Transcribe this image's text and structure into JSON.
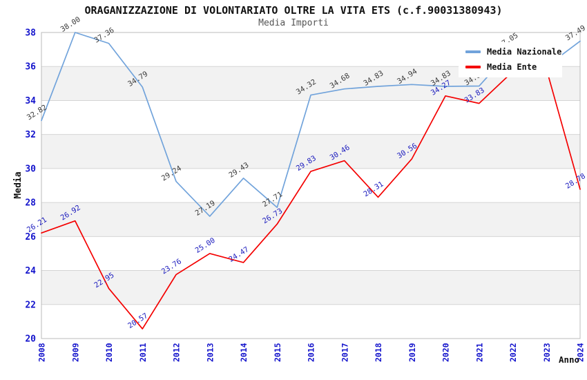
{
  "chart_data": {
    "type": "line",
    "title": "ORAGANIZZAZIONE DI VOLONTARIATO OLTRE LA VITA ETS (c.f.90031380943)",
    "subtitle": "Media Importi",
    "xlabel": "Anno",
    "ylabel": "Media",
    "categories": [
      "2008",
      "2009",
      "2010",
      "2011",
      "2012",
      "2013",
      "2014",
      "2015",
      "2016",
      "2017",
      "2018",
      "2019",
      "2020",
      "2021",
      "2022",
      "2023",
      "2024"
    ],
    "series": [
      {
        "name": "Media Nazionale",
        "color": "#71a3db",
        "label_color": "#3c3c3c",
        "values": [
          32.82,
          38.0,
          37.36,
          34.79,
          29.24,
          27.19,
          29.43,
          27.71,
          34.32,
          34.68,
          34.83,
          34.94,
          34.83,
          34.85,
          37.05,
          36.0,
          37.49
        ]
      },
      {
        "name": "Media Ente",
        "color": "#f40000",
        "label_color": "#1c1cbe",
        "values": [
          26.21,
          26.92,
          22.95,
          20.57,
          23.76,
          25.0,
          24.47,
          26.73,
          29.83,
          30.46,
          28.31,
          30.56,
          34.27,
          33.83,
          35.7,
          35.85,
          28.78
        ]
      }
    ],
    "ylim": [
      20,
      38
    ],
    "ytick_step": 2,
    "y_ticks": [
      "20",
      "22",
      "24",
      "26",
      "28",
      "30",
      "32",
      "34",
      "36",
      "38"
    ],
    "grid": true,
    "legend_position": "top-right",
    "colors": {
      "band": "#f2f2f2",
      "band_alt": "#ffffff",
      "grid": "#d4d4d4",
      "border": "#bbbbbb",
      "axis_text": "#1414cc",
      "axis_title": "#111111",
      "title": "#111111",
      "subtitle": "#555555"
    }
  }
}
